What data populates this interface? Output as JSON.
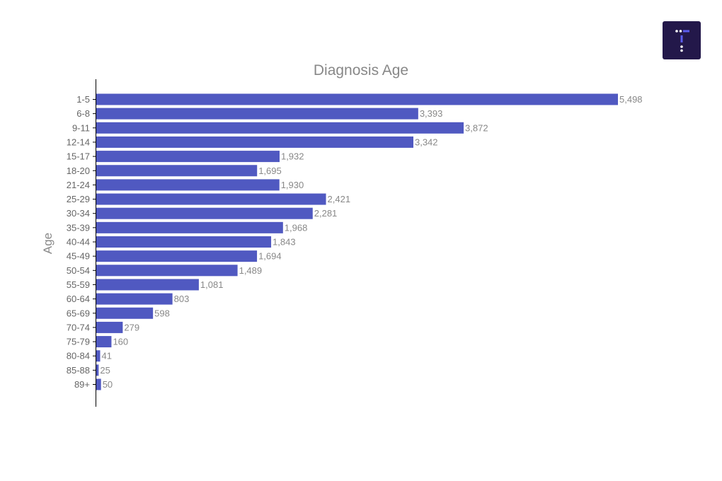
{
  "chart_data": {
    "type": "bar",
    "orientation": "horizontal",
    "title": "Diagnosis Age",
    "ylabel": "Age",
    "xlabel": "",
    "categories": [
      "1-5",
      "6-8",
      "9-11",
      "12-14",
      "15-17",
      "18-20",
      "21-24",
      "25-29",
      "30-34",
      "35-39",
      "40-44",
      "45-49",
      "50-54",
      "55-59",
      "60-64",
      "65-69",
      "70-74",
      "75-79",
      "80-84",
      "85-88",
      "89+"
    ],
    "values": [
      5498,
      3393,
      3872,
      3342,
      1932,
      1695,
      1930,
      2421,
      2281,
      1968,
      1843,
      1694,
      1489,
      1081,
      803,
      598,
      279,
      160,
      41,
      25,
      50
    ],
    "data_labels": [
      "5,498",
      "3,393",
      "3,872",
      "3,342",
      "1,932",
      "1,695",
      "1,930",
      "2,421",
      "2,281",
      "1,968",
      "1,843",
      "1,694",
      "1,489",
      "1,081",
      "803",
      "598",
      "279",
      "160",
      "41",
      "25",
      "50"
    ],
    "xlim": [
      0,
      5498
    ],
    "grid": false,
    "legend": "none",
    "bar_color": "#5059c1",
    "text_color": "#888888",
    "tick_color": "#666666"
  },
  "logo": {
    "background": "#23184a",
    "accent": "#5b5cf0"
  }
}
